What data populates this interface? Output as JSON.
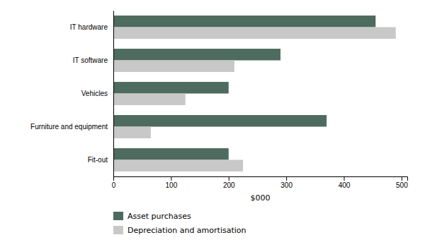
{
  "chart_data": {
    "type": "bar",
    "orientation": "horizontal",
    "categories": [
      "IT hardware",
      "IT software",
      "Vehicles",
      "Furniture and equipment",
      "Fit-out"
    ],
    "series": [
      {
        "name": "Asset purchases",
        "color": "#4d6b5e",
        "values": [
          455,
          290,
          200,
          370,
          200
        ]
      },
      {
        "name": "Depreciation and amortisation",
        "color": "#c8c8c8",
        "values": [
          490,
          210,
          125,
          65,
          225
        ]
      }
    ],
    "xlabel": "$000",
    "xlim": [
      0,
      510
    ],
    "xticks": [
      0,
      100,
      200,
      300,
      400,
      500
    ],
    "grid": false,
    "legend": "bottom"
  }
}
